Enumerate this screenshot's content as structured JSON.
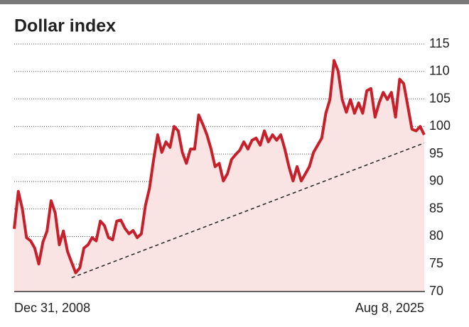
{
  "chart_data": {
    "type": "line",
    "title": "Dollar index",
    "categories": [
      "Dec 31, 2008",
      null,
      null,
      null,
      null,
      null,
      null,
      null,
      null,
      null,
      null,
      null,
      null,
      null,
      null,
      null,
      null,
      null,
      null,
      null,
      null,
      null,
      null,
      null,
      null,
      null,
      null,
      null,
      null,
      null,
      null,
      null,
      null,
      null,
      null,
      null,
      null,
      null,
      null,
      null,
      null,
      null,
      null,
      null,
      null,
      null,
      null,
      null,
      null,
      null,
      null,
      null,
      null,
      null,
      null,
      null,
      null,
      null,
      null,
      null,
      null,
      null,
      null,
      null,
      null,
      null,
      null,
      null,
      null,
      null,
      null,
      null,
      null,
      null,
      null,
      null,
      null,
      null,
      null,
      null,
      null,
      null,
      null,
      null,
      null,
      null,
      null,
      null,
      null,
      null,
      null,
      null,
      null,
      null,
      null,
      null,
      null,
      null,
      null,
      null,
      "Aug 8, 2025"
    ],
    "values": [
      81.4,
      88.2,
      85,
      79.8,
      79.2,
      77.9,
      75,
      79,
      81,
      86.5,
      84.3,
      78.5,
      81,
      77.3,
      75.3,
      73.4,
      74.3,
      77.9,
      78.5,
      79.8,
      79.2,
      82.8,
      82,
      79.8,
      79.4,
      82.8,
      83,
      81.5,
      80.5,
      81.1,
      79.8,
      80.5,
      85.6,
      88.8,
      94,
      98.5,
      95.3,
      97.2,
      96.2,
      100,
      99.2,
      95.3,
      93.3,
      95.9,
      95.9,
      102.1,
      100.4,
      98.5,
      95.9,
      92.7,
      93.3,
      90.1,
      91.4,
      94,
      94.9,
      95.7,
      97.2,
      95.9,
      97.5,
      97.9,
      96.6,
      99.2,
      97.2,
      98.5,
      97.5,
      98.5,
      95.9,
      92.7,
      90.1,
      92.7,
      90.1,
      91.4,
      92.7,
      95.3,
      96.6,
      97.9,
      102.4,
      104.9,
      112,
      110.1,
      104.9,
      102.6,
      104.9,
      102.4,
      104.3,
      102.4,
      106.5,
      106.9,
      101.7,
      104.3,
      106.2,
      104.9,
      106.2,
      101.7,
      108.6,
      107.8,
      103.7,
      99.5,
      99.2,
      100,
      98.5
    ],
    "trend_line": [
      null,
      null,
      null,
      null,
      null,
      null,
      null,
      null,
      null,
      null,
      null,
      null,
      null,
      null,
      72.5,
      null,
      null,
      null,
      null,
      null,
      null,
      null,
      null,
      null,
      null,
      null,
      null,
      null,
      null,
      null,
      null,
      null,
      null,
      null,
      null,
      null,
      null,
      null,
      null,
      null,
      null,
      null,
      null,
      null,
      null,
      null,
      null,
      null,
      null,
      null,
      null,
      null,
      null,
      null,
      null,
      null,
      null,
      null,
      null,
      null,
      null,
      null,
      null,
      null,
      null,
      null,
      null,
      null,
      null,
      null,
      null,
      null,
      null,
      null,
      null,
      null,
      null,
      null,
      null,
      null,
      null,
      null,
      null,
      null,
      null,
      null,
      null,
      null,
      null,
      null,
      null,
      null,
      null,
      null,
      null,
      null,
      null,
      null,
      null,
      null,
      97
    ],
    "color": "#c8202a",
    "area_color": "#f9e3e3",
    "ylim": [
      70,
      115
    ],
    "yticks": [
      70,
      75,
      80,
      85,
      90,
      95,
      100,
      105,
      110,
      115
    ],
    "grid": true
  }
}
